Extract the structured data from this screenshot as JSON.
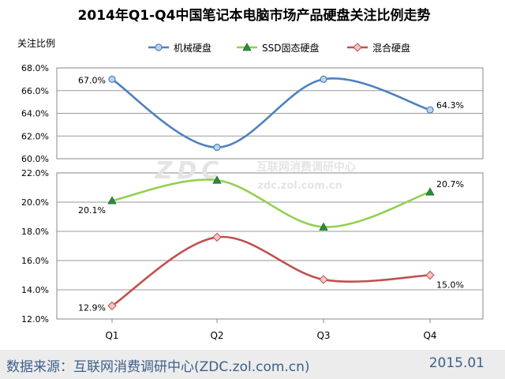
{
  "footer": {
    "source": "数据来源：互联网消费调研中心(ZDC.zol.com.cn)",
    "date": "2015.01"
  },
  "watermark": {
    "logo": "ZDC",
    "cn": "互联网消费调研中心",
    "url": "zdc.zol.com.cn"
  },
  "chart_data": {
    "type": "line",
    "title": "2014年Q1-Q4中国笔记本电脑市场产品硬盘关注比例走势",
    "ylabel": "关注比例",
    "categories": [
      "Q1",
      "Q2",
      "Q3",
      "Q4"
    ],
    "legend_position": "top",
    "grid": true,
    "axis_break": true,
    "panels": [
      {
        "ylim": [
          60.0,
          68.0
        ],
        "yticks": [
          "60.0%",
          "62.0%",
          "64.0%",
          "66.0%",
          "68.0%"
        ],
        "series": [
          {
            "name": "机械硬盘",
            "color": "#4f81bd",
            "marker": "circle",
            "values": [
              67.0,
              61.0,
              67.0,
              64.3
            ],
            "labels": [
              "67.0%",
              "",
              "",
              "64.3%"
            ]
          }
        ]
      },
      {
        "ylim": [
          12.0,
          22.0
        ],
        "yticks": [
          "12.0%",
          "14.0%",
          "16.0%",
          "18.0%",
          "20.0%",
          "22.0%"
        ],
        "series": [
          {
            "name": "SSD固态硬盘",
            "color": "#9bbb59",
            "marker": "triangle",
            "values": [
              20.1,
              21.5,
              18.3,
              20.7
            ],
            "labels": [
              "20.1%",
              "",
              "",
              "20.7%"
            ]
          },
          {
            "name": "混合硬盘",
            "color": "#c0504d",
            "marker": "diamond",
            "values": [
              12.9,
              17.6,
              14.7,
              15.0
            ],
            "labels": [
              "12.9%",
              "",
              "",
              "15.0%"
            ]
          }
        ]
      }
    ]
  }
}
